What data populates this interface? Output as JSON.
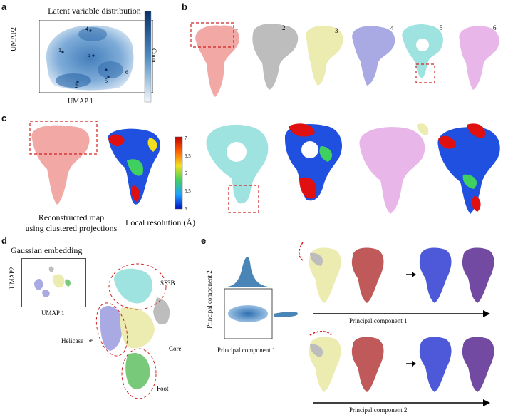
{
  "panels": {
    "a": {
      "label": "a",
      "title": "Latent variable distribution",
      "xlabel": "UMAP 1",
      "ylabel": "UMAP2",
      "colorbar_label": "Count",
      "points": [
        "1",
        "2",
        "3",
        "4",
        "5",
        "6"
      ]
    },
    "b": {
      "label": "b",
      "map_numbers": [
        "1",
        "2",
        "3",
        "4",
        "5",
        "6"
      ]
    },
    "c": {
      "label": "c",
      "caption_left": "Reconstructed map using clustered projections",
      "caption_left_line1": "Reconstructed map",
      "caption_left_line2": "using clustered projections",
      "caption_right": "Local resolution (Å)",
      "colorbar_ticks": [
        "7",
        "6.5",
        "6",
        "5.5",
        "5"
      ]
    },
    "d": {
      "label": "d",
      "title": "Gaussian embedding",
      "xlabel": "UMAP 1",
      "ylabel": "UMAP2",
      "domains": [
        "SF3B",
        "Helicase",
        "Core",
        "Foot"
      ]
    },
    "e": {
      "label": "e",
      "xlabel": "Principal component 1",
      "ylabel": "Principal component 2",
      "row1_axis": "Principal component 1",
      "row2_axis": "Principal component 2"
    }
  },
  "colors": {
    "salmon": "#f2a9a6",
    "grey": "#bdbdbd",
    "khaki": "#ecebb0",
    "lavender": "#a9a9e3",
    "cyan": "#9fe3e1",
    "pink": "#e8b6e8",
    "green": "#79c97a",
    "red_dash": "#d02020",
    "umap_blue": "#2c6fb0"
  }
}
